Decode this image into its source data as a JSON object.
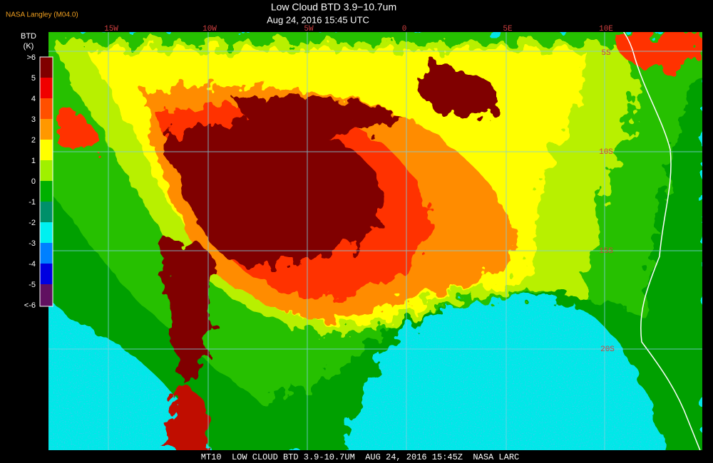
{
  "header": {
    "title": "Low Cloud BTD 3.9−10.7um",
    "subtitle": "Aug 24, 2016 15:45 UTC",
    "source": "NASA Langley (M04.0)"
  },
  "legend": {
    "title": "BTD",
    "unit": "(K)",
    "labels": [
      ">6",
      "5",
      "4",
      "3",
      "2",
      "1",
      "0",
      "-1",
      "-2",
      "-3",
      "-4",
      "-5",
      "<-6"
    ]
  },
  "grid": {
    "longitudes": [
      "15W",
      "10W",
      "5W",
      "0",
      "5E",
      "10E"
    ],
    "latitudes": [
      "5S",
      "10S",
      "15S",
      "20S"
    ]
  },
  "footer": "MT10  LOW CLOUD BTD 3.9-10.7UM  AUG 24, 2016 15:45Z  NASA LARC"
}
